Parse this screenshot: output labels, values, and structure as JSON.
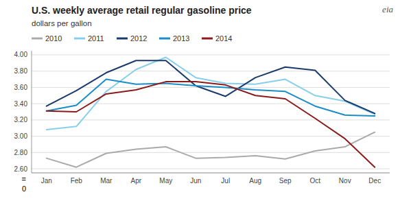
{
  "chart_data": {
    "type": "line",
    "title": "U.S. weekly average retail regular gasoline price",
    "subtitle": "dollars  per gallon",
    "categories": [
      "Jan",
      "Feb",
      "Mar",
      "Apr",
      "May",
      "Jun",
      "Jul",
      "Aug",
      "Sep",
      "Oct",
      "Nov",
      "Dec"
    ],
    "series": [
      {
        "name": "2010",
        "color": "#aaaaaa",
        "values": [
          2.73,
          2.62,
          2.79,
          2.84,
          2.87,
          2.73,
          2.74,
          2.76,
          2.72,
          2.82,
          2.87,
          3.05
        ]
      },
      {
        "name": "2011",
        "color": "#87CEEB",
        "values": [
          3.08,
          3.12,
          3.55,
          3.82,
          3.97,
          3.72,
          3.65,
          3.64,
          3.7,
          3.5,
          3.43,
          3.27
        ]
      },
      {
        "name": "2012",
        "color": "#1a3a6b",
        "values": [
          3.37,
          3.56,
          3.78,
          3.93,
          3.93,
          3.62,
          3.49,
          3.72,
          3.85,
          3.81,
          3.44,
          3.28
        ]
      },
      {
        "name": "2013",
        "color": "#1a8cc8",
        "values": [
          3.31,
          3.38,
          3.7,
          3.64,
          3.65,
          3.62,
          3.6,
          3.57,
          3.55,
          3.37,
          3.26,
          3.25
        ]
      },
      {
        "name": "2014",
        "color": "#8b1a1a",
        "values": [
          3.31,
          3.3,
          3.52,
          3.57,
          3.67,
          3.67,
          3.63,
          3.5,
          3.46,
          3.22,
          2.97,
          2.62
        ]
      }
    ],
    "ylim": [
      2.55,
      4.05
    ],
    "yticks": [
      {
        "value": 2.6,
        "label": "2.60"
      },
      {
        "value": 2.8,
        "label": "2.80"
      },
      {
        "value": 3.0,
        "label": "3.00"
      },
      {
        "value": 3.2,
        "label": "3.20"
      },
      {
        "value": 3.4,
        "label": "3.40"
      },
      {
        "value": 3.6,
        "label": "3.60"
      },
      {
        "value": 3.8,
        "label": "3.80"
      },
      {
        "value": 4.0,
        "label": "4.00"
      }
    ],
    "grid": true,
    "legend": "top",
    "annotations": [
      {
        "text": "eia"
      },
      {
        "text": "="
      },
      {
        "text": "0"
      }
    ]
  }
}
